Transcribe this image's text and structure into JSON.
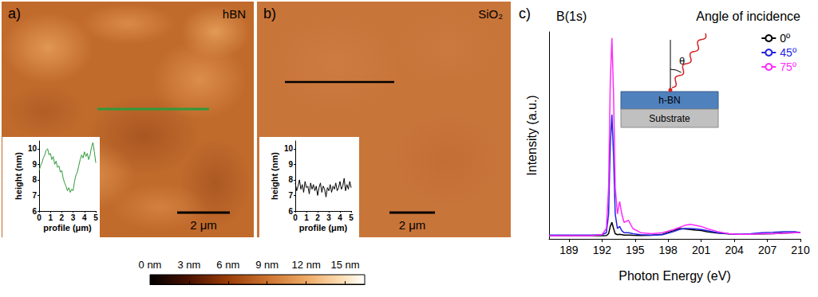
{
  "chart_data": [
    {
      "type": "image",
      "label": "a)",
      "title": "hBN",
      "scale_bar": "2 μm",
      "inset": {
        "type": "line",
        "color": "#2f9a3a",
        "xlabel": "profile (μm)",
        "ylabel": "height (nm)",
        "x": [
          0,
          0.125,
          0.25,
          0.375,
          0.5,
          0.625,
          0.75,
          0.875,
          1,
          1.125,
          1.25,
          1.375,
          1.5,
          1.625,
          1.75,
          1.875,
          2,
          2.125,
          2.25,
          2.375,
          2.5,
          2.625,
          2.75,
          2.875,
          3,
          3.125,
          3.25,
          3.375,
          3.5,
          3.625,
          3.75,
          3.875,
          4,
          4.125,
          4.25,
          4.375,
          4.5,
          4.625,
          4.75,
          4.875,
          5
        ],
        "values": [
          8.6,
          8.9,
          9.1,
          9.4,
          9.6,
          9.9,
          10.0,
          9.6,
          9.7,
          9.3,
          9.5,
          9.0,
          9.2,
          8.8,
          8.9,
          8.5,
          8.6,
          8.1,
          7.8,
          7.6,
          7.3,
          7.5,
          7.2,
          7.4,
          7.3,
          7.9,
          8.3,
          8.5,
          8.9,
          9.3,
          9.6,
          9.4,
          9.8,
          9.5,
          9.7,
          9.3,
          9.6,
          10.1,
          10.4,
          9.8,
          9.1
        ],
        "xlim": [
          0,
          5
        ],
        "xticks": [
          0,
          1,
          2,
          3,
          4,
          5
        ],
        "ylim": [
          6,
          10.5
        ],
        "yticks": [
          6,
          7,
          8,
          9,
          10
        ]
      }
    },
    {
      "type": "image",
      "label": "b)",
      "title": "SiO₂",
      "scale_bar": "2 μm",
      "inset": {
        "type": "line",
        "color": "#000000",
        "xlabel": "profile (μm)",
        "ylabel": "height (nm)",
        "x": [
          0,
          0.125,
          0.25,
          0.375,
          0.5,
          0.625,
          0.75,
          0.875,
          1,
          1.125,
          1.25,
          1.375,
          1.5,
          1.625,
          1.75,
          1.875,
          2,
          2.125,
          2.25,
          2.375,
          2.5,
          2.625,
          2.75,
          2.875,
          3,
          3.125,
          3.25,
          3.375,
          3.5,
          3.625,
          3.75,
          3.875,
          4,
          4.125,
          4.25,
          4.375,
          4.5,
          4.625,
          4.75,
          4.875,
          5
        ],
        "values": [
          7.8,
          7.3,
          7.6,
          8.0,
          7.4,
          7.7,
          7.2,
          7.9,
          7.5,
          7.6,
          7.1,
          7.8,
          7.4,
          7.7,
          7.3,
          7.6,
          7.0,
          7.5,
          7.8,
          7.2,
          7.6,
          7.4,
          6.9,
          7.5,
          7.3,
          7.7,
          7.2,
          7.6,
          7.4,
          7.8,
          7.3,
          7.5,
          7.9,
          7.4,
          7.6,
          8.1,
          7.3,
          7.7,
          7.4,
          7.9,
          7.5
        ],
        "xlim": [
          0,
          5
        ],
        "xticks": [
          0,
          1,
          2,
          3,
          4,
          5
        ],
        "ylim": [
          6,
          10.5
        ],
        "yticks": [
          6,
          7,
          8,
          9,
          10
        ]
      }
    },
    {
      "type": "colorbar",
      "xlim": [
        0,
        16.5
      ],
      "xticks": [
        {
          "value": 0,
          "label": "0 nm"
        },
        {
          "value": 3,
          "label": "3 nm"
        },
        {
          "value": 6,
          "label": "6 nm"
        },
        {
          "value": 9,
          "label": "9 nm"
        },
        {
          "value": 12,
          "label": "12 nm"
        },
        {
          "value": 15,
          "label": "15 nm"
        }
      ]
    },
    {
      "type": "line",
      "label": "c)",
      "title": "B(1s)",
      "xlabel": "Photon Energy (eV)",
      "ylabel": "Intensity (a.u.)",
      "legend": "top-right",
      "legend_title": "Angle of incidence",
      "marker": "circle",
      "tick_labels": "x",
      "diagram": {
        "top_layer": "h-BN",
        "bottom_layer": "Substrate",
        "angle": "θ"
      },
      "x": [
        187.2,
        188,
        189,
        190,
        191,
        192,
        192.4,
        192.6,
        192.75,
        192.9,
        193.05,
        193.2,
        193.4,
        193.6,
        193.8,
        194,
        194.4,
        194.8,
        195.5,
        196.5,
        197.5,
        198.5,
        199,
        199.5,
        200,
        200.5,
        201,
        201.5,
        202.5,
        203.5,
        204.5,
        205.5,
        206.5,
        207.5,
        208.5,
        209.5,
        210
      ],
      "series": [
        {
          "name": "0º",
          "color": "#000000",
          "values": [
            0.015,
            0.015,
            0.015,
            0.015,
            0.015,
            0.015,
            0.016,
            0.025,
            0.06,
            0.08,
            0.05,
            0.025,
            0.02,
            0.022,
            0.02,
            0.018,
            0.018,
            0.017,
            0.016,
            0.017,
            0.022,
            0.04,
            0.05,
            0.048,
            0.045,
            0.042,
            0.04,
            0.035,
            0.028,
            0.024,
            0.022,
            0.023,
            0.024,
            0.025,
            0.028,
            0.03,
            0.03
          ]
        },
        {
          "name": "45º",
          "color": "#2323e0",
          "values": [
            0.018,
            0.018,
            0.018,
            0.018,
            0.018,
            0.02,
            0.03,
            0.12,
            0.45,
            0.6,
            0.4,
            0.12,
            0.05,
            0.06,
            0.04,
            0.03,
            0.03,
            0.025,
            0.02,
            0.018,
            0.02,
            0.035,
            0.045,
            0.05,
            0.05,
            0.048,
            0.045,
            0.04,
            0.03,
            0.025,
            0.022,
            0.025,
            0.03,
            0.032,
            0.035,
            0.035,
            0.03
          ]
        },
        {
          "name": "75º",
          "color": "#ff2bff",
          "values": [
            0.015,
            0.015,
            0.015,
            0.015,
            0.015,
            0.02,
            0.05,
            0.25,
            0.75,
            0.97,
            0.7,
            0.25,
            0.12,
            0.18,
            0.12,
            0.08,
            0.09,
            0.05,
            0.03,
            0.025,
            0.03,
            0.045,
            0.055,
            0.065,
            0.07,
            0.065,
            0.06,
            0.05,
            0.035,
            0.025,
            0.022,
            0.022,
            0.025,
            0.025,
            0.028,
            0.03,
            0.03
          ]
        }
      ],
      "xlim": [
        187.2,
        210
      ],
      "xticks": [
        189,
        192,
        195,
        198,
        201,
        204,
        207,
        210
      ],
      "ylim": [
        0,
        1
      ]
    }
  ]
}
